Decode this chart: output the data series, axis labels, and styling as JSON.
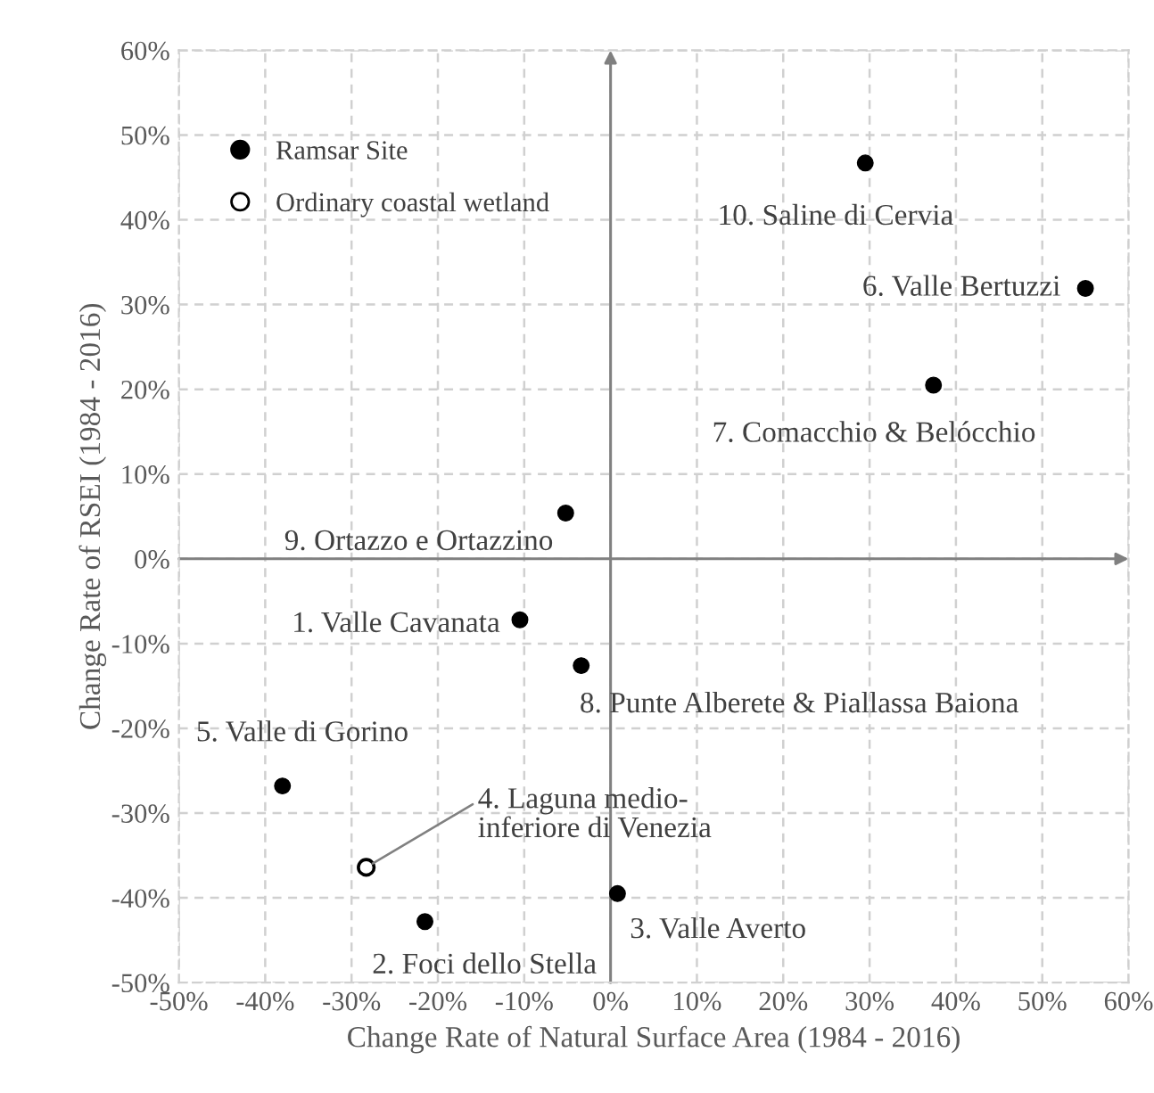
{
  "chart_data": {
    "type": "scatter",
    "xlabel": "Change Rate of Natural Surface Area (1984 - 2016)",
    "ylabel": "Change Rate of RSEI (1984 - 2016)",
    "series": [
      {
        "name": "Ramsar Site",
        "color": "#000000",
        "marker": "circle",
        "x": [
          29.5,
          55.0,
          37.4,
          -5.2,
          -10.5,
          -3.4,
          -38.0,
          -21.5,
          0.8
        ],
        "values": [
          46.7,
          31.9,
          20.5,
          5.4,
          -7.2,
          -12.6,
          -26.8,
          -42.8,
          -39.5
        ]
      },
      {
        "name": "Ordinary coastal wetland",
        "color": "#000000",
        "marker": "circle",
        "x": [
          -28.3
        ],
        "values": [
          -36.4
        ]
      }
    ],
    "annotations": [
      {
        "text": "10. Saline di Cervia",
        "x": 29.5,
        "y": 46.7
      },
      {
        "text": "6. Valle Bertuzzi",
        "x": 55.0,
        "y": 31.9
      },
      {
        "text": "7. Comacchio & Belócchio",
        "x": 37.4,
        "y": 20.5
      },
      {
        "text": "9. Ortazzo e Ortazzino",
        "x": -5.2,
        "y": 5.4
      },
      {
        "text": "1. Valle Cavanata",
        "x": -10.5,
        "y": -7.2
      },
      {
        "text": "8. Punte Alberete & Piallassa Baiona",
        "x": -3.4,
        "y": -12.6
      },
      {
        "text": "5. Valle di Gorino",
        "x": -38.0,
        "y": -26.8
      },
      {
        "text": "4. Laguna medio-\ninferiore di Venezia",
        "x": -28.3,
        "y": -36.4
      },
      {
        "text": "2. Foci dello Stella",
        "x": -21.5,
        "y": -42.8
      },
      {
        "text": "3. Valle Averto",
        "x": 0.8,
        "y": -39.5
      }
    ],
    "xlim": [
      -50,
      60
    ],
    "ylim": [
      -50,
      60
    ],
    "xticks": [
      {
        "value": -50,
        "label": "-50%"
      },
      {
        "value": -40,
        "label": "-40%"
      },
      {
        "value": -30,
        "label": "-30%"
      },
      {
        "value": -20,
        "label": "-20%"
      },
      {
        "value": -10,
        "label": "-10%"
      },
      {
        "value": 0,
        "label": "0%"
      },
      {
        "value": 10,
        "label": "10%"
      },
      {
        "value": 20,
        "label": "20%"
      },
      {
        "value": 30,
        "label": "30%"
      },
      {
        "value": 40,
        "label": "40%"
      },
      {
        "value": 50,
        "label": "50%"
      },
      {
        "value": 60,
        "label": "60%"
      }
    ],
    "yticks": [
      {
        "value": -50,
        "label": "-50%"
      },
      {
        "value": -40,
        "label": "-40%"
      },
      {
        "value": -30,
        "label": "-30%"
      },
      {
        "value": -20,
        "label": "-20%"
      },
      {
        "value": -10,
        "label": "-10%"
      },
      {
        "value": 0,
        "label": "0%"
      },
      {
        "value": 10,
        "label": "10%"
      },
      {
        "value": 20,
        "label": "20%"
      },
      {
        "value": 30,
        "label": "30%"
      },
      {
        "value": 40,
        "label": "40%"
      },
      {
        "value": 50,
        "label": "50%"
      },
      {
        "value": 60,
        "label": "60%"
      }
    ],
    "grid": true,
    "legend": "top left"
  }
}
